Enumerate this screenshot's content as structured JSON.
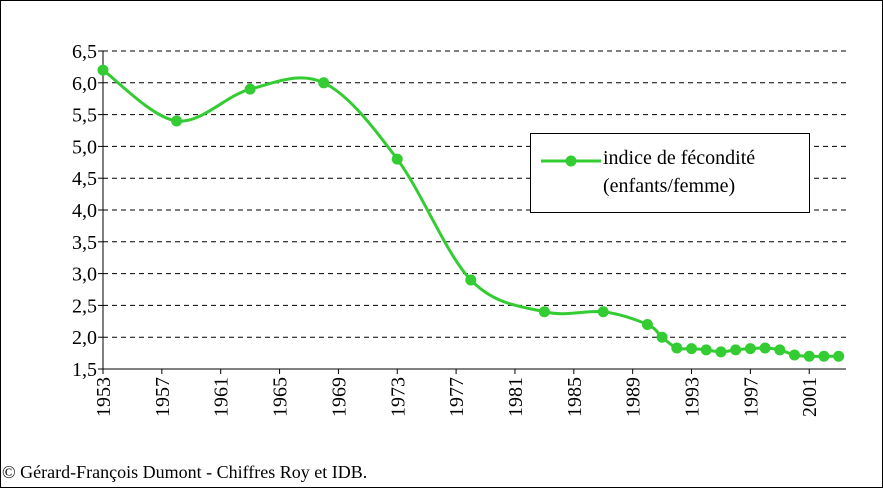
{
  "chart_data": {
    "type": "line",
    "x": [
      1953,
      1958,
      1963,
      1968,
      1973,
      1978,
      1983,
      1987,
      1990,
      1991,
      1992,
      1993,
      1994,
      1995,
      1996,
      1997,
      1998,
      1999,
      2000,
      2001,
      2002,
      2003
    ],
    "series": [
      {
        "name": "indice de fécondité (enfants/femme)",
        "color": "#33cc33",
        "values": [
          6.2,
          5.4,
          5.9,
          6.0,
          4.8,
          2.9,
          2.4,
          2.4,
          2.2,
          2.0,
          1.83,
          1.82,
          1.8,
          1.77,
          1.8,
          1.82,
          1.83,
          1.8,
          1.72,
          1.7,
          1.7,
          1.7
        ]
      }
    ],
    "xlim": [
      1953,
      2003.5
    ],
    "xticks": [
      1953,
      1957,
      1961,
      1965,
      1969,
      1973,
      1977,
      1981,
      1985,
      1989,
      1993,
      1997,
      2001
    ],
    "ylim": [
      1.5,
      6.5
    ],
    "yticks": [
      {
        "value": 1.5,
        "label": "1,5"
      },
      {
        "value": 2.0,
        "label": "2,0"
      },
      {
        "value": 2.5,
        "label": "2,5"
      },
      {
        "value": 3.0,
        "label": "3,0"
      },
      {
        "value": 3.5,
        "label": "3,5"
      },
      {
        "value": 4.0,
        "label": "4,0"
      },
      {
        "value": 4.5,
        "label": "4,5"
      },
      {
        "value": 5.0,
        "label": "5,0"
      },
      {
        "value": 5.5,
        "label": "5,5"
      },
      {
        "value": 6.0,
        "label": "6,0"
      },
      {
        "value": 6.5,
        "label": "6,5"
      }
    ],
    "grid": true,
    "smooth": true,
    "legend": "right",
    "caption": "© Gérard-François Dumont - Chiffres Roy et IDB."
  }
}
